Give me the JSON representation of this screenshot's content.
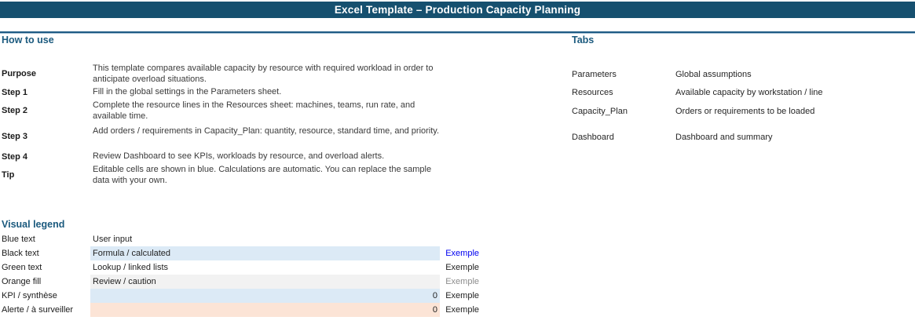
{
  "banner": {
    "title": "Excel Template – Production Capacity Planning"
  },
  "how_to_use": {
    "heading": "How to use",
    "rows": [
      {
        "label": "Purpose",
        "text": "This template compares available capacity by resource with required workload in order to anticipate overload situations."
      },
      {
        "label": "Step 1",
        "text": "Fill in the global settings in the Parameters sheet."
      },
      {
        "label": "Step 2",
        "text": "Complete the resource lines in the Resources sheet: machines, teams, run rate, and available time."
      },
      {
        "label": "Step 3",
        "text": "Add orders / requirements in Capacity_Plan: quantity, resource, standard time, and priority."
      },
      {
        "label": "Step 4",
        "text": "Review Dashboard to see KPIs, workloads by resource, and overload alerts."
      },
      {
        "label": "Tip",
        "text": "Editable cells are shown in blue. Calculations are automatic. You can replace the sample data with your own."
      }
    ]
  },
  "tabs": {
    "heading": "Tabs",
    "items": [
      {
        "name": "Parameters",
        "desc": "Global assumptions"
      },
      {
        "name": "Resources",
        "desc": "Available capacity by workstation / line"
      },
      {
        "name": "Capacity_Plan",
        "desc": "Orders or requirements to be loaded"
      },
      {
        "name": "Dashboard",
        "desc": "Dashboard and summary"
      }
    ]
  },
  "legend": {
    "heading": "Visual legend",
    "rows": [
      {
        "label": "Blue text",
        "text": "User input",
        "fill": "none",
        "value": "",
        "example": ""
      },
      {
        "label": "Black text",
        "text": "Formula / calculated",
        "fill": "blue",
        "value": "",
        "example": "Exemple",
        "example_color": "blue"
      },
      {
        "label": "Green text",
        "text": "Lookup / linked lists",
        "fill": "none",
        "value": "",
        "example": "Exemple",
        "example_color": "black"
      },
      {
        "label": "Orange fill",
        "text": "Review / caution",
        "fill": "gray",
        "value": "",
        "example": "Exemple",
        "example_color": "gray"
      },
      {
        "label": "KPI / synthèse",
        "text": "",
        "fill": "blue",
        "value": "0",
        "example": "Exemple",
        "example_color": "black"
      },
      {
        "label": "Alerte / à surveiller",
        "text": "",
        "fill": "peach",
        "value": "0",
        "example": "Exemple",
        "example_color": "black"
      }
    ]
  },
  "colors": {
    "banner_bg": "#16506F",
    "heading": "#1B5A7E",
    "rule": "#1E5B85",
    "rule_light": "#A3BFD2",
    "body_text": "#3A3A3A",
    "label_text": "#1A1A1A",
    "fill_blue": "#DCEAF6",
    "fill_gray": "#F2F2F2",
    "fill_peach": "#FCE4D6",
    "ex_blue": "#0000F0",
    "ex_gray": "#8C8C8C"
  }
}
